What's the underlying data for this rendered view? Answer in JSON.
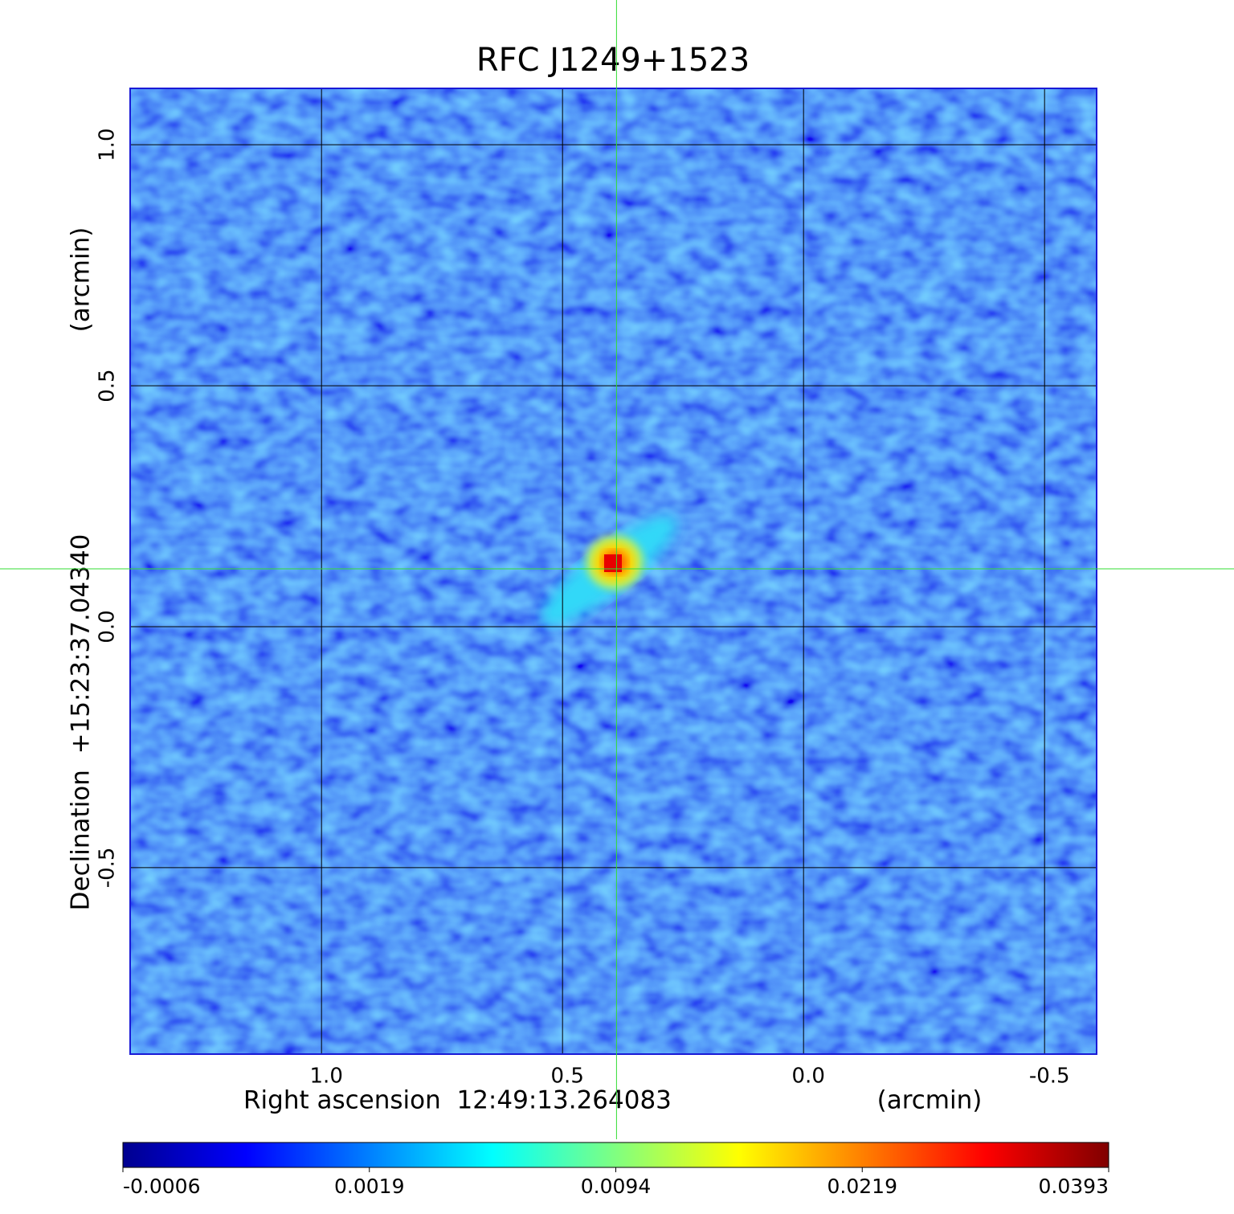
{
  "chart_data": {
    "type": "image",
    "title": "RFC J1249+1523",
    "title_color": "#1a1ad6",
    "xlabel": "Right ascension  12:49:13.264083",
    "xunit": "(arcmin)",
    "ylabel": "Declination  +15:23:37.04340",
    "yunit": "(arcmin)",
    "xlim": [
      1.397,
      -0.608
    ],
    "ylim": [
      -0.887,
      1.117
    ],
    "xticks": [
      {
        "value": 1,
        "label": "1.0"
      },
      0.5,
      {
        "value": 0,
        "label": "0.0"
      },
      -0.5
    ],
    "yticks": [
      {
        "value": 1,
        "label": "1.0"
      },
      0.5,
      {
        "value": 0,
        "label": "0.0"
      },
      -0.5
    ],
    "grid": true,
    "crosshair": {
      "x": 0.388,
      "y": 0.12,
      "color": "#33dd33"
    },
    "colorbar": {
      "ticks": [
        -0.0006,
        0.0019,
        0.0094,
        0.0219,
        0.0393
      ],
      "colors": [
        "#00008f",
        "#0000ff",
        "#0080ff",
        "#00ffff",
        "#80ff80",
        "#ffff00",
        "#ff8000",
        "#ff0000",
        "#800000"
      ]
    }
  }
}
